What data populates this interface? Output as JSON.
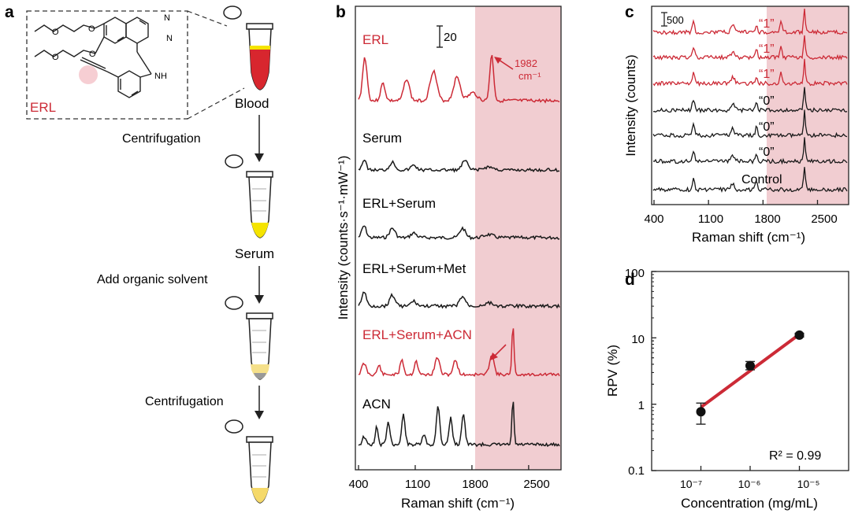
{
  "panel_letters": {
    "a": "a",
    "b": "b",
    "c": "c",
    "d": "d"
  },
  "colors": {
    "red": "#cc2a36",
    "black": "#1a1a1a",
    "shade": "#f1cdd1",
    "yellow": "#f5e400",
    "blood": "#d8262e"
  },
  "panel_a": {
    "molecule_label": "ERL",
    "atom_labels": {
      "N1": "N",
      "N2": "N",
      "NH": "NH",
      "O1": "O",
      "O2": "O",
      "O3": "O",
      "O4": "O"
    },
    "blood_label": "Blood",
    "steps": [
      "Centrifugation",
      "Serum",
      "Add organic solvent",
      "Centrifugation"
    ],
    "icons": [
      "microtube-blood-icon",
      "microtube-serum-icon",
      "microtube-solvent-icon",
      "microtube-pellet-icon"
    ]
  },
  "panel_b": {
    "ylabel": "Intensity (counts·s⁻¹·mW⁻¹)",
    "xlabel": "Raman shift (cm⁻¹)",
    "xticks": [
      "400",
      "1100",
      "1800",
      "2500"
    ],
    "scalebar_label": "20",
    "peak_annotation": {
      "value": "1982",
      "unit": "cm⁻¹"
    },
    "spectra": [
      {
        "name": "ERL",
        "color": "red"
      },
      {
        "name": "Serum",
        "color": "black"
      },
      {
        "name": "ERL+Serum",
        "color": "black"
      },
      {
        "name": "ERL+Serum+Met",
        "color": "black"
      },
      {
        "name": "ERL+Serum+ACN",
        "color": "red"
      },
      {
        "name": "ACN",
        "color": "black"
      }
    ],
    "shaded_region": [
      1800,
      2900
    ]
  },
  "panel_c": {
    "ylabel": "Intensity (counts)",
    "xlabel": "Raman shift (cm⁻¹)",
    "xticks": [
      "400",
      "1100",
      "1800",
      "2500"
    ],
    "scalebar_label": "500",
    "traces": [
      {
        "label": "“1”",
        "color": "red"
      },
      {
        "label": "“1”",
        "color": "red"
      },
      {
        "label": "“1”",
        "color": "red"
      },
      {
        "label": "“0”",
        "color": "black"
      },
      {
        "label": "“0”",
        "color": "black"
      },
      {
        "label": "“0”",
        "color": "black"
      },
      {
        "label": "Control",
        "color": "black"
      }
    ]
  },
  "chart_data": [
    {
      "type": "line",
      "panel": "b",
      "xlabel": "Raman shift (cm⁻¹)",
      "ylabel": "Intensity (counts·s⁻¹·mW⁻¹)",
      "xlim": [
        400,
        2900
      ],
      "series": [
        {
          "name": "ERL"
        },
        {
          "name": "Serum"
        },
        {
          "name": "ERL+Serum"
        },
        {
          "name": "ERL+Serum+Met"
        },
        {
          "name": "ERL+Serum+ACN"
        },
        {
          "name": "ACN"
        }
      ],
      "annotations": [
        "1982 cm⁻¹"
      ]
    },
    {
      "type": "line",
      "panel": "c",
      "xlabel": "Raman shift (cm⁻¹)",
      "ylabel": "Intensity (counts)",
      "xlim": [
        400,
        2900
      ],
      "series": [
        {
          "name": "“1”"
        },
        {
          "name": "“1”"
        },
        {
          "name": "“1”"
        },
        {
          "name": "“0”"
        },
        {
          "name": "“0”"
        },
        {
          "name": "“0”"
        },
        {
          "name": "Control"
        }
      ]
    },
    {
      "type": "scatter",
      "panel": "d",
      "xlabel": "Concentration (mg/mL)",
      "ylabel": "RPV (%)",
      "xscale": "log",
      "yscale": "log",
      "xlim": [
        1e-08,
        0.0001
      ],
      "ylim": [
        0.1,
        100
      ],
      "xticks": [
        "10⁻⁷",
        "10⁻⁶",
        "10⁻⁵"
      ],
      "yticks": [
        "0.1",
        "1",
        "10",
        "100"
      ],
      "x": [
        1e-07,
        1e-06,
        1e-05
      ],
      "y": [
        0.77,
        3.8,
        11.0
      ],
      "yerr_low": [
        0.27,
        0.5,
        0.7
      ],
      "yerr_high": [
        0.27,
        0.6,
        0.7
      ],
      "fit": {
        "x": [
          1e-07,
          1e-05
        ],
        "y": [
          0.9,
          11.3
        ]
      },
      "annotation": "R² = 0.99"
    }
  ]
}
